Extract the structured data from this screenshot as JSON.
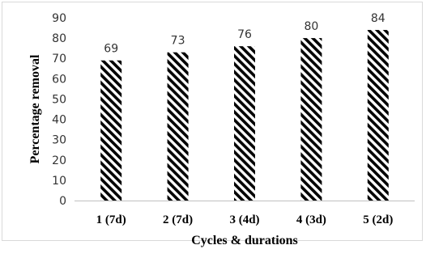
{
  "chart_data": {
    "type": "bar",
    "categories": [
      "1 (7d)",
      "2 (7d)",
      "3 (4d)",
      "4 (3d)",
      "5 (2d)"
    ],
    "values": [
      69,
      73,
      76,
      80,
      84
    ],
    "data_labels": [
      "69",
      "73",
      "76",
      "80",
      "84"
    ],
    "title": "",
    "xlabel": "Cycles & durations",
    "ylabel": "Percentage removal",
    "ylim": [
      0,
      90
    ],
    "yticks": [
      "0",
      "10",
      "20",
      "30",
      "40",
      "50",
      "60",
      "70",
      "80",
      "90"
    ],
    "grid": false,
    "legend": "none",
    "bar_fill": "diagonal-hatch",
    "bar_color": "#000000"
  }
}
